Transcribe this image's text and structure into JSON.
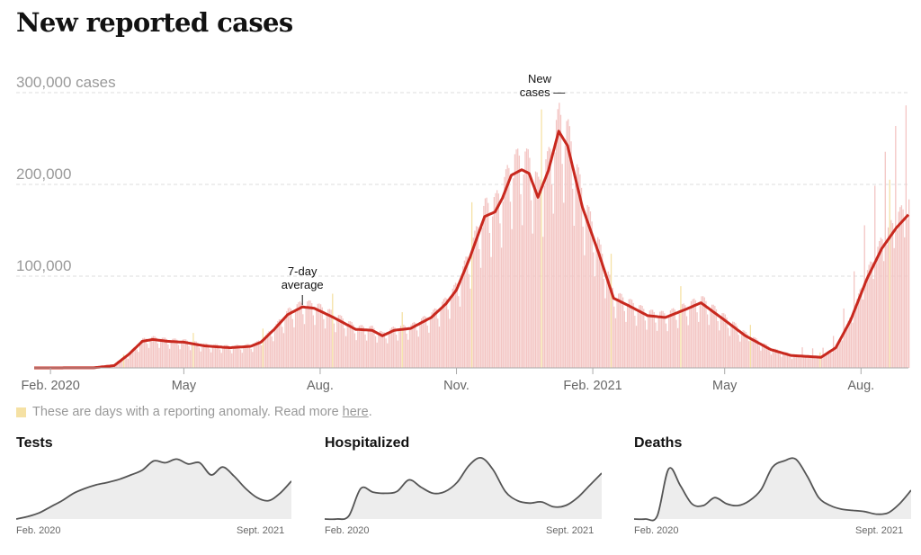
{
  "title": "New reported cases",
  "chart_data": {
    "type": "bar",
    "title": "New reported cases",
    "xlabel": "",
    "ylabel": "",
    "x_tick_labels": [
      "Feb. 2020",
      "May",
      "Aug.",
      "Nov.",
      "Feb. 2021",
      "May",
      "Aug."
    ],
    "x_tick_dates": [
      "2020-02-01",
      "2020-05-01",
      "2020-08-01",
      "2020-11-01",
      "2021-02-01",
      "2021-05-01",
      "2021-08-01"
    ],
    "y_tick_labels": [
      "300,000 cases",
      "200,000",
      "100,000"
    ],
    "y_ticks": [
      300000,
      200000,
      100000
    ],
    "ylim": [
      0,
      300000
    ],
    "xlim": [
      "2020-01-21",
      "2021-09-02"
    ],
    "grid": true,
    "annotations": [
      {
        "text_lines": [
          "New",
          "cases —"
        ],
        "target": "daily bars",
        "date": "2021-01-01"
      },
      {
        "text_lines": [
          "7-day",
          "average"
        ],
        "target": "line",
        "date": "2020-07-20"
      }
    ],
    "series": [
      {
        "type": "bar",
        "color": "#f3c5c3",
        "anomaly_color": "#f5e1a4",
        "note": "daily new cases; values follow 7-day average with weekly reporting pattern"
      },
      {
        "type": "line",
        "color": "#c8281e",
        "points": [
          [
            "2020-01-21",
            0
          ],
          [
            "2020-03-01",
            100
          ],
          [
            "2020-03-15",
            2500
          ],
          [
            "2020-03-25",
            15000
          ],
          [
            "2020-04-03",
            29000
          ],
          [
            "2020-04-10",
            31000
          ],
          [
            "2020-04-20",
            29000
          ],
          [
            "2020-05-01",
            28000
          ],
          [
            "2020-05-15",
            24000
          ],
          [
            "2020-06-01",
            22000
          ],
          [
            "2020-06-15",
            23500
          ],
          [
            "2020-06-22",
            28000
          ],
          [
            "2020-07-01",
            42000
          ],
          [
            "2020-07-10",
            58000
          ],
          [
            "2020-07-20",
            66500
          ],
          [
            "2020-07-28",
            65000
          ],
          [
            "2020-08-10",
            55000
          ],
          [
            "2020-08-25",
            42000
          ],
          [
            "2020-09-05",
            41000
          ],
          [
            "2020-09-12",
            35000
          ],
          [
            "2020-09-20",
            41000
          ],
          [
            "2020-10-01",
            43000
          ],
          [
            "2020-10-15",
            55000
          ],
          [
            "2020-10-25",
            70000
          ],
          [
            "2020-11-01",
            85000
          ],
          [
            "2020-11-10",
            120000
          ],
          [
            "2020-11-20",
            165000
          ],
          [
            "2020-11-27",
            170000
          ],
          [
            "2020-12-02",
            185000
          ],
          [
            "2020-12-08",
            210000
          ],
          [
            "2020-12-15",
            216000
          ],
          [
            "2020-12-20",
            212000
          ],
          [
            "2020-12-26",
            186000
          ],
          [
            "2021-01-02",
            215000
          ],
          [
            "2021-01-09",
            258000
          ],
          [
            "2021-01-15",
            242000
          ],
          [
            "2021-01-25",
            175000
          ],
          [
            "2021-02-05",
            125000
          ],
          [
            "2021-02-15",
            76000
          ],
          [
            "2021-02-25",
            68000
          ],
          [
            "2021-03-10",
            57000
          ],
          [
            "2021-03-22",
            55000
          ],
          [
            "2021-04-05",
            64000
          ],
          [
            "2021-04-15",
            71000
          ],
          [
            "2021-05-01",
            52000
          ],
          [
            "2021-05-15",
            35000
          ],
          [
            "2021-06-01",
            20000
          ],
          [
            "2021-06-15",
            13500
          ],
          [
            "2021-07-01",
            12000
          ],
          [
            "2021-07-05",
            11500
          ],
          [
            "2021-07-15",
            22000
          ],
          [
            "2021-07-25",
            52000
          ],
          [
            "2021-08-05",
            97000
          ],
          [
            "2021-08-15",
            130000
          ],
          [
            "2021-08-25",
            153000
          ],
          [
            "2021-09-02",
            167000
          ]
        ]
      }
    ]
  },
  "anomaly_note": {
    "text": "These are days with a reporting anomaly. Read more",
    "link": "here",
    "suffix": "."
  },
  "small_multiples": [
    {
      "title": "Tests",
      "start_label": "Feb. 2020",
      "end_label": "Sept. 2021",
      "chart_data": {
        "type": "area",
        "relative_values": [
          0,
          0.04,
          0.1,
          0.2,
          0.3,
          0.42,
          0.5,
          0.56,
          0.6,
          0.65,
          0.72,
          0.8,
          0.95,
          0.92,
          0.98,
          0.9,
          0.92,
          0.72,
          0.85,
          0.7,
          0.5,
          0.35,
          0.3,
          0.42,
          0.62
        ]
      }
    },
    {
      "title": "Hospitalized",
      "start_label": "Feb. 2020",
      "end_label": "Sept. 2021",
      "chart_data": {
        "type": "area",
        "relative_values": [
          0,
          0,
          0.05,
          0.5,
          0.44,
          0.42,
          0.45,
          0.64,
          0.52,
          0.42,
          0.45,
          0.6,
          0.88,
          1.0,
          0.8,
          0.45,
          0.3,
          0.26,
          0.28,
          0.2,
          0.22,
          0.35,
          0.55,
          0.75
        ]
      }
    },
    {
      "title": "Deaths",
      "start_label": "Feb. 2020",
      "end_label": "Sept. 2021",
      "chart_data": {
        "type": "area",
        "relative_values": [
          0,
          0,
          0.05,
          0.82,
          0.55,
          0.25,
          0.22,
          0.35,
          0.25,
          0.22,
          0.3,
          0.48,
          0.85,
          0.95,
          0.98,
          0.7,
          0.35,
          0.22,
          0.16,
          0.14,
          0.12,
          0.08,
          0.1,
          0.25,
          0.47
        ]
      }
    }
  ]
}
